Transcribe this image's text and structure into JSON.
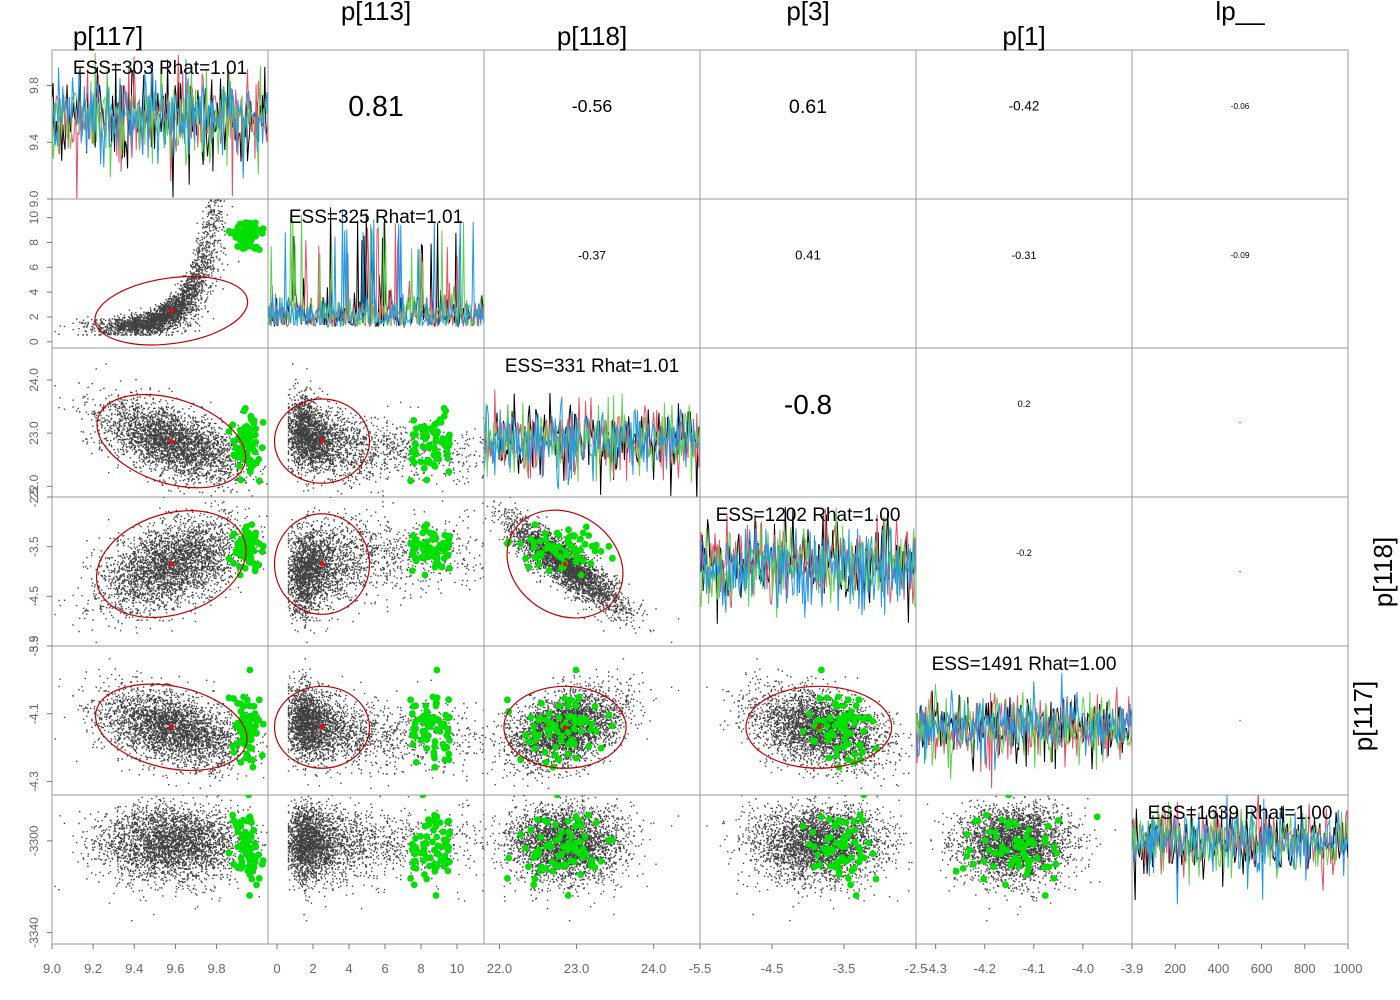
{
  "chart_data": {
    "type": "scatter",
    "variables": [
      "p[117]",
      "p[113]",
      "p[118]",
      "p[3]",
      "p[1]",
      "lp__"
    ],
    "right_labels": [
      "p[118]",
      "p[117]"
    ],
    "diagnostics": [
      "ESS=303 Rhat=1.01",
      "ESS=325 Rhat=1.01",
      "ESS=331 Rhat=1.01",
      "ESS=1202 Rhat=1.00",
      "ESS=1491 Rhat=1.00",
      "ESS=1639 Rhat=1.00"
    ],
    "correlations": [
      {
        "row": 0,
        "col": 1,
        "text": "0.81",
        "value": 0.81
      },
      {
        "row": 0,
        "col": 2,
        "text": "-0.56",
        "value": -0.56
      },
      {
        "row": 0,
        "col": 3,
        "text": "0.61",
        "value": 0.61
      },
      {
        "row": 0,
        "col": 4,
        "text": "-0.42",
        "value": -0.42
      },
      {
        "row": 0,
        "col": 5,
        "text": "-0.06",
        "value": -0.06
      },
      {
        "row": 1,
        "col": 2,
        "text": "-0.37",
        "value": -0.37
      },
      {
        "row": 1,
        "col": 3,
        "text": "0.41",
        "value": 0.41
      },
      {
        "row": 1,
        "col": 4,
        "text": "-0.31",
        "value": -0.31
      },
      {
        "row": 1,
        "col": 5,
        "text": "-0.09",
        "value": -0.09
      },
      {
        "row": 2,
        "col": 3,
        "text": "-0.8",
        "value": -0.8
      },
      {
        "row": 2,
        "col": 4,
        "text": "0.2",
        "value": 0.2
      },
      {
        "row": 2,
        "col": 5,
        "text": "",
        "value": 0.0
      },
      {
        "row": 3,
        "col": 4,
        "text": "-0.2",
        "value": -0.2
      },
      {
        "row": 3,
        "col": 5,
        "text": "",
        "value": 0.0
      },
      {
        "row": 4,
        "col": 5,
        "text": "",
        "value": 0.0
      }
    ],
    "ranges": [
      [
        9.0,
        10.05
      ],
      [
        -0.5,
        11.5
      ],
      [
        21.8,
        24.6
      ],
      [
        -5.5,
        -2.5
      ],
      [
        -4.34,
        -3.9
      ],
      [
        -3345,
        -3280
      ]
    ],
    "x_ticks": [
      [
        "9.0",
        "9.2",
        "9.4",
        "9.6",
        "9.8"
      ],
      [
        "0",
        "2",
        "4",
        "6",
        "8",
        "10"
      ],
      [
        "22.0",
        "23.0",
        "24.0"
      ],
      [
        "-5.5",
        "-4.5",
        "-3.5",
        "-2.5"
      ],
      [
        "-4.3",
        "-4.2",
        "-4.1",
        "-4.0",
        "-3.9"
      ],
      [
        "200",
        "400",
        "600",
        "800",
        "1000"
      ]
    ],
    "y_ticks": [
      [
        "9.0",
        "9.4",
        "9.8"
      ],
      [
        "0",
        "2",
        "4",
        "6",
        "8",
        "10"
      ],
      [
        "22.0",
        "23.0",
        "24.0"
      ],
      [
        "-5.5",
        "-4.5",
        "-3.5",
        "-2.5"
      ],
      [
        "-4.3",
        "-4.1",
        "-3.9"
      ],
      [
        "-3340",
        "-3300"
      ]
    ],
    "trace_iterations": 1000,
    "means": [
      9.58,
      2.5,
      22.85,
      -3.85,
      -4.14,
      -3301
    ],
    "sds": [
      0.17,
      1.2,
      0.36,
      0.46,
      0.055,
      8
    ],
    "chain_colors": [
      "#000000",
      "#df536b",
      "#61d04f",
      "#2297e6"
    ],
    "divergent_color": "#00e000",
    "mean_color": "#ff0000",
    "ellipse_color": "#c00000",
    "grid": false
  }
}
